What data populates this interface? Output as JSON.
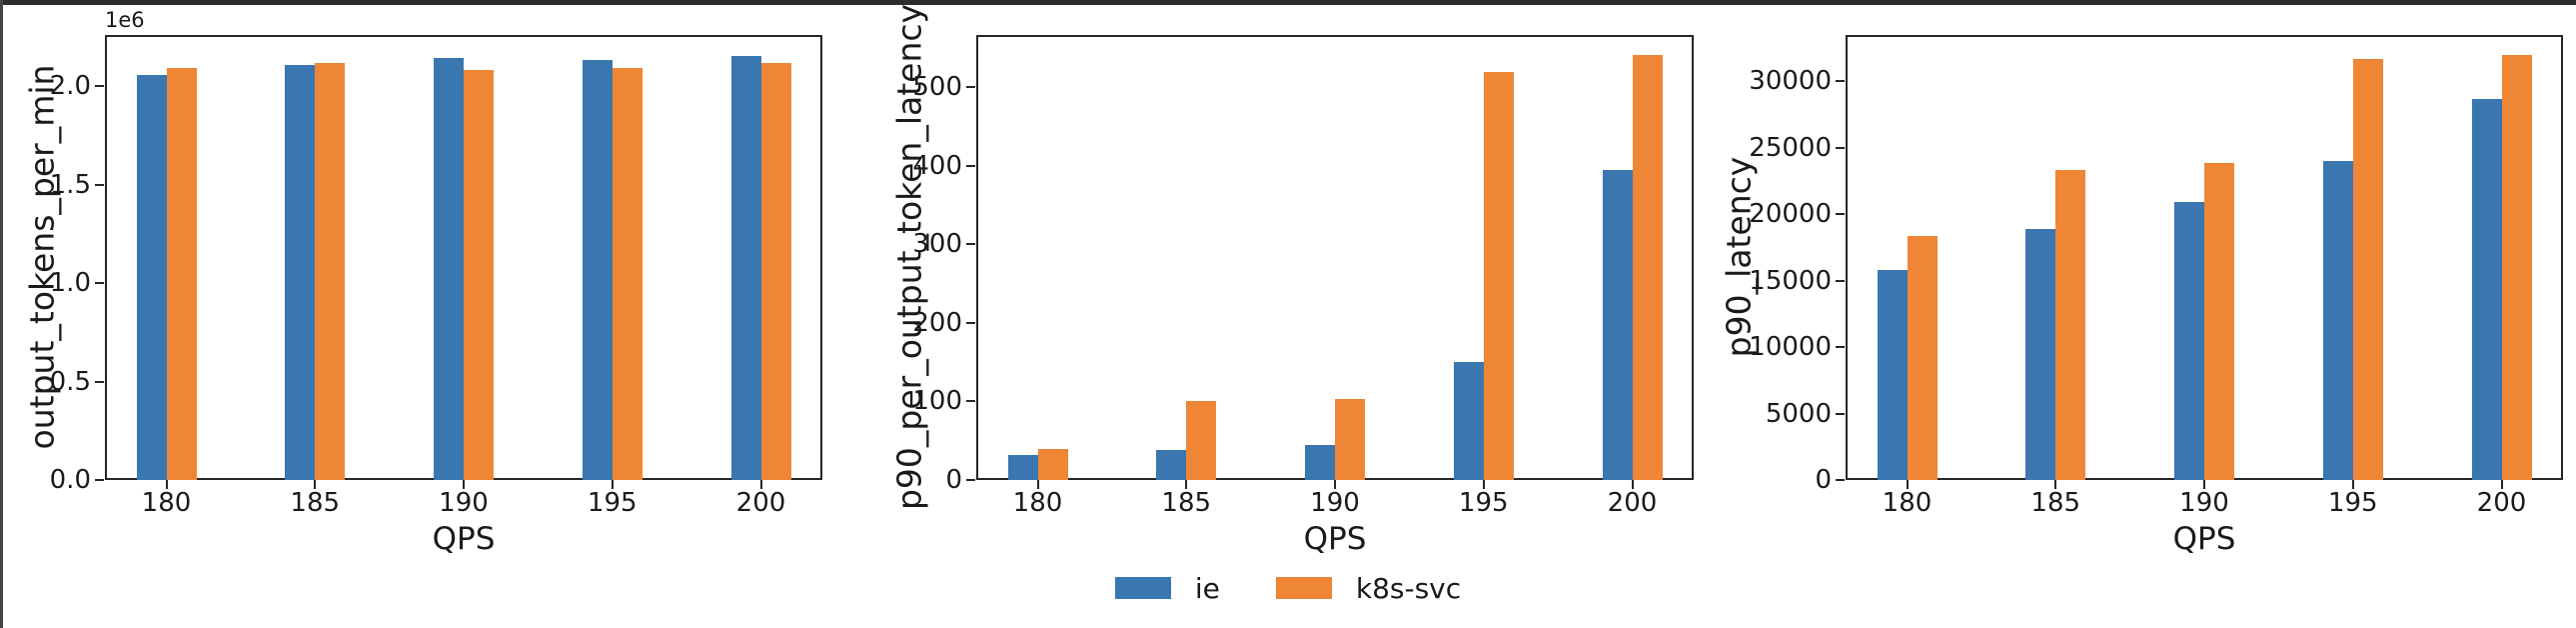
{
  "figure": {
    "background": "#ffffff",
    "top_bar_color": "#2d2d2d",
    "left_edge_color": "#454545",
    "spine_color": "#262626"
  },
  "colors": {
    "ie": "#3a76af",
    "k8s-svc": "#ef8636"
  },
  "legend": {
    "position": "bottom-center",
    "items": [
      {
        "label": "ie",
        "color": "#3a76af"
      },
      {
        "label": "k8s-svc",
        "color": "#ef8636"
      }
    ]
  },
  "chart_data": [
    {
      "type": "bar",
      "title": "",
      "ylabel": "output_tokens_per_min",
      "xlabel": "QPS",
      "offset_text": "1e6",
      "grid": false,
      "categories": [
        "180",
        "185",
        "190",
        "195",
        "200"
      ],
      "series": [
        {
          "name": "ie",
          "values": [
            2056000,
            2110000,
            2143000,
            2132000,
            2153000
          ]
        },
        {
          "name": "k8s-svc",
          "values": [
            2091000,
            2116000,
            2081000,
            2092000,
            2116000
          ]
        }
      ],
      "ylim": [
        0,
        2260000
      ],
      "yticks": [
        0,
        500000,
        1000000,
        1500000,
        2000000
      ],
      "ytick_labels": [
        "0.0",
        "0.5",
        "1.0",
        "1.5",
        "2.0"
      ]
    },
    {
      "type": "bar",
      "title": "",
      "ylabel": "p90_per_output_token_latency",
      "xlabel": "QPS",
      "offset_text": "",
      "grid": false,
      "categories": [
        "180",
        "185",
        "190",
        "195",
        "200"
      ],
      "series": [
        {
          "name": "ie",
          "values": [
            32,
            38,
            44,
            150,
            394
          ]
        },
        {
          "name": "k8s-svc",
          "values": [
            40,
            100,
            103,
            519,
            541
          ]
        }
      ],
      "ylim": [
        0,
        566
      ],
      "yticks": [
        0,
        100,
        200,
        300,
        400,
        500
      ],
      "ytick_labels": [
        "0",
        "100",
        "200",
        "300",
        "400",
        "500"
      ]
    },
    {
      "type": "bar",
      "title": "",
      "ylabel": "p90_latency",
      "xlabel": "QPS",
      "offset_text": "",
      "grid": false,
      "categories": [
        "180",
        "185",
        "190",
        "195",
        "200"
      ],
      "series": [
        {
          "name": "ie",
          "values": [
            15800,
            18900,
            20900,
            24000,
            28700
          ]
        },
        {
          "name": "k8s-svc",
          "values": [
            18400,
            23300,
            23900,
            31700,
            32000
          ]
        }
      ],
      "ylim": [
        0,
        33500
      ],
      "yticks": [
        0,
        5000,
        10000,
        15000,
        20000,
        25000,
        30000
      ],
      "ytick_labels": [
        "0",
        "5000",
        "10000",
        "15000",
        "20000",
        "25000",
        "30000"
      ]
    }
  ]
}
